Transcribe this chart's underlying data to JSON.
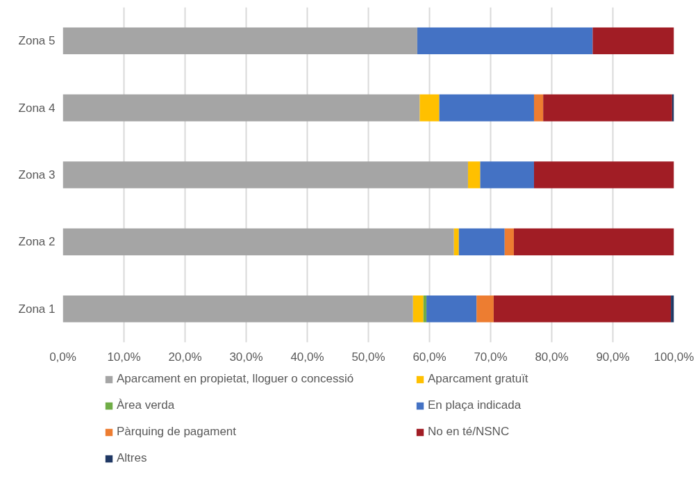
{
  "chart_data": {
    "type": "bar",
    "orientation": "horizontal",
    "stacked": true,
    "categories": [
      "Zona 5",
      "Zona 4",
      "Zona 3",
      "Zona 2",
      "Zona 1"
    ],
    "series": [
      {
        "name": "Aparcament en propietat, lloguer o concessió",
        "color": "#a5a5a5",
        "values": [
          58.0,
          58.4,
          66.3,
          64.0,
          57.3
        ]
      },
      {
        "name": "Aparcament gratuït",
        "color": "#ffc000",
        "values": [
          0,
          3.2,
          2.0,
          0.8,
          1.7
        ]
      },
      {
        "name": "Àrea verda",
        "color": "#70ad47",
        "values": [
          0,
          0,
          0,
          0,
          0.5
        ]
      },
      {
        "name": "En plaça indicada",
        "color": "#4472c4",
        "values": [
          28.7,
          15.5,
          8.8,
          7.5,
          8.2
        ]
      },
      {
        "name": "Pàrquing de pagament",
        "color": "#ed7d31",
        "values": [
          0,
          1.5,
          0,
          1.5,
          2.8
        ]
      },
      {
        "name": "No en té/NSNC",
        "color": "#a11d25",
        "values": [
          13.3,
          21.1,
          22.9,
          26.2,
          29.0
        ]
      },
      {
        "name": "Altres",
        "color": "#203864",
        "values": [
          0,
          0.3,
          0,
          0,
          0.5
        ]
      }
    ],
    "xlim": [
      0,
      100
    ],
    "xticks": [
      {
        "value": 0,
        "label": "0,0%"
      },
      {
        "value": 10,
        "label": "10,0%"
      },
      {
        "value": 20,
        "label": "20,0%"
      },
      {
        "value": 30,
        "label": "30,0%"
      },
      {
        "value": 40,
        "label": "40,0%"
      },
      {
        "value": 50,
        "label": "50,0%"
      },
      {
        "value": 60,
        "label": "60,0%"
      },
      {
        "value": 70,
        "label": "70,0%"
      },
      {
        "value": 80,
        "label": "80,0%"
      },
      {
        "value": 90,
        "label": "90,0%"
      },
      {
        "value": 100,
        "label": "100,0%"
      }
    ],
    "grid": "x",
    "legend": "bottom"
  }
}
